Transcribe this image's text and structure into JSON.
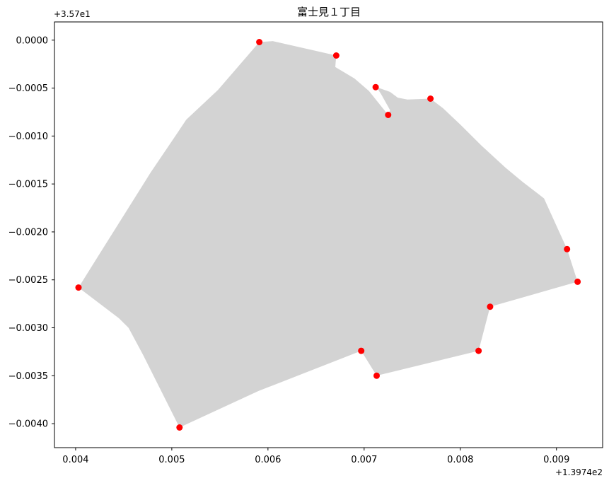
{
  "chart_data": {
    "type": "scatter",
    "title": "富士見１丁目",
    "x_offset_label": "+1.3974e2",
    "y_offset_label": "+3.57e1",
    "xlim": [
      0.00378,
      0.00948
    ],
    "ylim": [
      -0.00425,
      0.00019
    ],
    "x_ticks": [
      0.004,
      0.005,
      0.006,
      0.007,
      0.008,
      0.009
    ],
    "x_tick_labels": [
      "0.004",
      "0.005",
      "0.006",
      "0.007",
      "0.008",
      "0.009"
    ],
    "y_ticks": [
      0.0,
      -0.0005,
      -0.001,
      -0.0015,
      -0.002,
      -0.0025,
      -0.003,
      -0.0035,
      -0.004
    ],
    "y_tick_labels": [
      "0.0000",
      "−0.0005",
      "−0.0010",
      "−0.0015",
      "−0.0020",
      "−0.0025",
      "−0.0030",
      "−0.0035",
      "−0.0040"
    ],
    "polygon_color": "#d3d3d3",
    "point_color": "#ff0000",
    "polygon": [
      [
        0.00403,
        -0.00258
      ],
      [
        0.00428,
        -0.00218
      ],
      [
        0.00453,
        -0.00178
      ],
      [
        0.00478,
        -0.00138
      ],
      [
        0.00505,
        -0.00098
      ],
      [
        0.00515,
        -0.00083
      ],
      [
        0.00548,
        -0.00052
      ],
      [
        0.00591,
        -2e-05
      ],
      [
        0.00605,
        -1e-05
      ],
      [
        0.00671,
        -0.00016
      ],
      [
        0.0067,
        -0.00028
      ],
      [
        0.0069,
        -0.0004
      ],
      [
        0.00705,
        -0.00053
      ],
      [
        0.00713,
        -0.00063
      ],
      [
        0.00725,
        -0.00078
      ],
      [
        0.00727,
        -0.00073
      ],
      [
        0.00718,
        -0.00057
      ],
      [
        0.00713,
        -0.00049
      ],
      [
        0.00727,
        -0.00054
      ],
      [
        0.00735,
        -0.0006
      ],
      [
        0.00745,
        -0.00062
      ],
      [
        0.00769,
        -0.00061
      ],
      [
        0.00782,
        -0.00071
      ],
      [
        0.008,
        -0.00088
      ],
      [
        0.00822,
        -0.0011
      ],
      [
        0.00847,
        -0.00133
      ],
      [
        0.00865,
        -0.00148
      ],
      [
        0.00887,
        -0.00165
      ],
      [
        0.00911,
        -0.00218
      ],
      [
        0.00922,
        -0.00252
      ],
      [
        0.00831,
        -0.00278
      ],
      [
        0.00819,
        -0.00324
      ],
      [
        0.00713,
        -0.0035
      ],
      [
        0.00697,
        -0.00324
      ],
      [
        0.0059,
        -0.00366
      ],
      [
        0.00508,
        -0.00404
      ],
      [
        0.0047,
        -0.00328
      ],
      [
        0.00455,
        -0.003
      ],
      [
        0.00445,
        -0.0029
      ],
      [
        0.00403,
        -0.00258
      ]
    ],
    "points": [
      [
        0.00591,
        -2e-05
      ],
      [
        0.00671,
        -0.00016
      ],
      [
        0.00712,
        -0.00049
      ],
      [
        0.00725,
        -0.00078
      ],
      [
        0.00769,
        -0.00061
      ],
      [
        0.00911,
        -0.00218
      ],
      [
        0.00922,
        -0.00252
      ],
      [
        0.00831,
        -0.00278
      ],
      [
        0.00819,
        -0.00324
      ],
      [
        0.00697,
        -0.00324
      ],
      [
        0.00713,
        -0.0035
      ],
      [
        0.00508,
        -0.00404
      ],
      [
        0.00403,
        -0.00258
      ]
    ]
  }
}
